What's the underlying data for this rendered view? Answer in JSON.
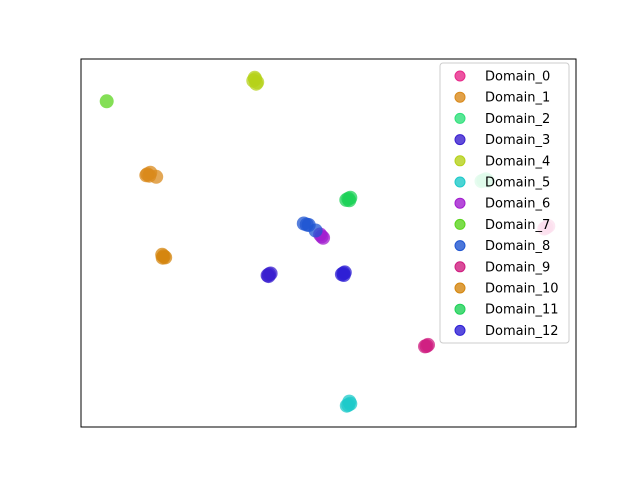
{
  "chart_data": {
    "type": "scatter",
    "grid": false,
    "axes_ticks": false,
    "legend_position": "top-right",
    "xlim": [
      0,
      100
    ],
    "ylim": [
      0,
      100
    ],
    "series": [
      {
        "name": "Domain_0",
        "color": "#e7298a",
        "points": [
          [
            94.0,
            54.2
          ],
          [
            94.4,
            54.6
          ],
          [
            93.6,
            53.9
          ]
        ]
      },
      {
        "name": "Domain_1",
        "color": "#d98a1c",
        "points": [
          [
            13.4,
            68.7
          ],
          [
            14.0,
            69.1
          ],
          [
            13.8,
            68.3
          ],
          [
            15.2,
            68.0
          ],
          [
            13.2,
            68.4
          ]
        ]
      },
      {
        "name": "Domain_2",
        "color": "#2ee07a",
        "points": [
          [
            81.3,
            67.0
          ],
          [
            81.8,
            67.3
          ],
          [
            80.9,
            66.8
          ],
          [
            82.2,
            66.9
          ]
        ]
      },
      {
        "name": "Domain_3",
        "color": "#3a1fcf",
        "points": [
          [
            38.0,
            41.5
          ],
          [
            37.7,
            41.2
          ],
          [
            38.3,
            41.7
          ],
          [
            37.9,
            41.0
          ]
        ]
      },
      {
        "name": "Domain_4",
        "color": "#b5d11a",
        "points": [
          [
            35.2,
            94.5
          ],
          [
            34.8,
            94.1
          ],
          [
            35.6,
            93.7
          ],
          [
            35.1,
            94.9
          ],
          [
            35.4,
            93.3
          ]
        ]
      },
      {
        "name": "Domain_5",
        "color": "#1ec9c9",
        "points": [
          [
            54.0,
            6.0
          ],
          [
            54.4,
            6.3
          ],
          [
            53.7,
            5.8
          ],
          [
            54.2,
            6.9
          ]
        ]
      },
      {
        "name": "Domain_6",
        "color": "#a21ecf",
        "points": [
          [
            48.6,
            51.8
          ],
          [
            48.3,
            52.3
          ],
          [
            48.9,
            51.4
          ]
        ]
      },
      {
        "name": "Domain_7",
        "color": "#5bd41e",
        "points": [
          [
            5.2,
            88.5
          ]
        ]
      },
      {
        "name": "Domain_8",
        "color": "#1f55d1",
        "points": [
          [
            45.6,
            55.0
          ],
          [
            45.0,
            55.3
          ],
          [
            46.0,
            54.9
          ],
          [
            47.4,
            53.4
          ]
        ]
      },
      {
        "name": "Domain_9",
        "color": "#cf1e80",
        "points": [
          [
            69.8,
            22.0
          ],
          [
            70.1,
            22.3
          ],
          [
            69.5,
            21.9
          ]
        ]
      },
      {
        "name": "Domain_10",
        "color": "#d4860f",
        "points": [
          [
            16.7,
            46.4
          ],
          [
            16.4,
            46.8
          ],
          [
            17.0,
            46.1
          ],
          [
            16.5,
            46.0
          ]
        ]
      },
      {
        "name": "Domain_11",
        "color": "#1ed158",
        "points": [
          [
            54.0,
            62.0
          ],
          [
            54.4,
            62.3
          ],
          [
            53.6,
            61.7
          ],
          [
            54.2,
            61.6
          ]
        ]
      },
      {
        "name": "Domain_12",
        "color": "#2e1fd4",
        "points": [
          [
            53.0,
            41.8
          ],
          [
            52.7,
            41.5
          ],
          [
            53.3,
            42.0
          ],
          [
            53.1,
            41.3
          ]
        ]
      }
    ]
  }
}
